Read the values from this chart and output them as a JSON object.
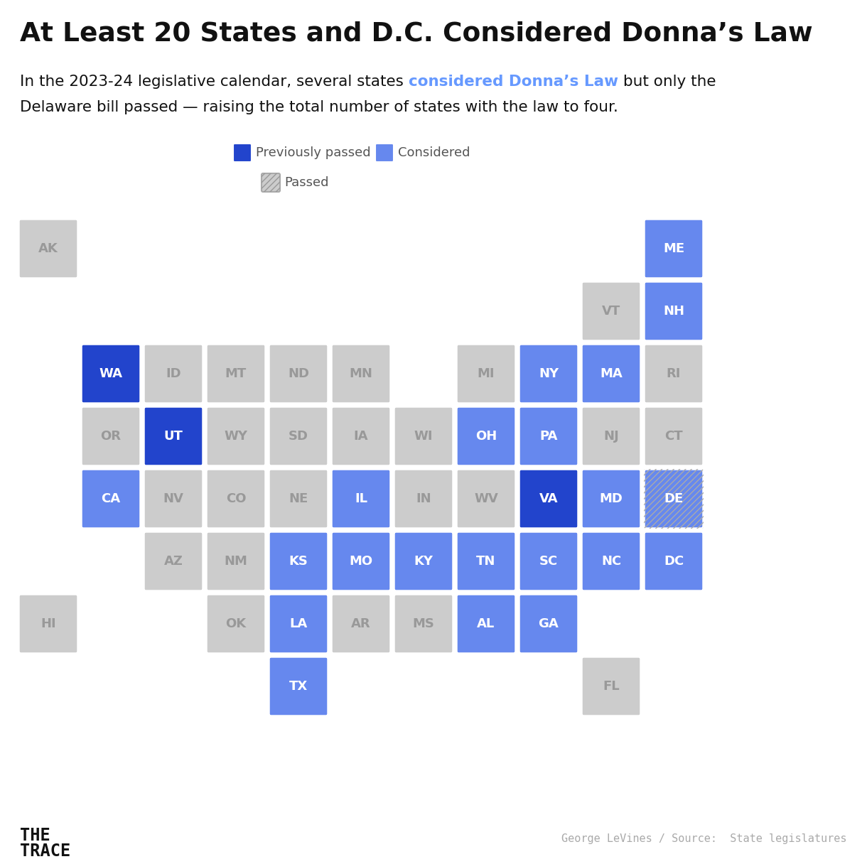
{
  "title": "At Least 20 States and D.C. Considered Donna’s Law",
  "subtitle_line1_pre": "In the 2023-24 legislative calendar, several states ",
  "subtitle_line1_link": "considered Donna’s Law",
  "subtitle_line1_post": " but only the",
  "subtitle_line2": "Delaware bill passed — raising the total number of states with the law to four.",
  "legend_previously_label": "Previously passed",
  "legend_considered_label": "Considered",
  "legend_passed_label": "Passed",
  "footer_logo": "THE\nTRACE",
  "footer_credit": "George LeVines / Source:  State legislatures",
  "colors": {
    "previously_passed": "#2244cc",
    "considered": "#6688ee",
    "passed_base": "#aabbdd",
    "none": "#cccccc",
    "white": "#ffffff",
    "link": "#6699ff",
    "text_dark": "#111111",
    "text_gray": "#999999",
    "text_label": "#555555"
  },
  "states": [
    {
      "abbr": "AK",
      "col": 0,
      "row": 0,
      "status": "none"
    },
    {
      "abbr": "ME",
      "col": 10,
      "row": 0,
      "status": "considered"
    },
    {
      "abbr": "VT",
      "col": 9,
      "row": 1,
      "status": "none"
    },
    {
      "abbr": "NH",
      "col": 10,
      "row": 1,
      "status": "considered"
    },
    {
      "abbr": "WA",
      "col": 1,
      "row": 2,
      "status": "previously_passed"
    },
    {
      "abbr": "ID",
      "col": 2,
      "row": 2,
      "status": "none"
    },
    {
      "abbr": "MT",
      "col": 3,
      "row": 2,
      "status": "none"
    },
    {
      "abbr": "ND",
      "col": 4,
      "row": 2,
      "status": "none"
    },
    {
      "abbr": "MN",
      "col": 5,
      "row": 2,
      "status": "none"
    },
    {
      "abbr": "MI",
      "col": 7,
      "row": 2,
      "status": "none"
    },
    {
      "abbr": "NY",
      "col": 8,
      "row": 2,
      "status": "considered"
    },
    {
      "abbr": "MA",
      "col": 9,
      "row": 2,
      "status": "considered"
    },
    {
      "abbr": "RI",
      "col": 10,
      "row": 2,
      "status": "none"
    },
    {
      "abbr": "OR",
      "col": 1,
      "row": 3,
      "status": "none"
    },
    {
      "abbr": "UT",
      "col": 2,
      "row": 3,
      "status": "previously_passed"
    },
    {
      "abbr": "WY",
      "col": 3,
      "row": 3,
      "status": "none"
    },
    {
      "abbr": "SD",
      "col": 4,
      "row": 3,
      "status": "none"
    },
    {
      "abbr": "IA",
      "col": 5,
      "row": 3,
      "status": "none"
    },
    {
      "abbr": "WI",
      "col": 6,
      "row": 3,
      "status": "none"
    },
    {
      "abbr": "OH",
      "col": 7,
      "row": 3,
      "status": "considered"
    },
    {
      "abbr": "PA",
      "col": 8,
      "row": 3,
      "status": "considered"
    },
    {
      "abbr": "NJ",
      "col": 9,
      "row": 3,
      "status": "none"
    },
    {
      "abbr": "CT",
      "col": 10,
      "row": 3,
      "status": "none"
    },
    {
      "abbr": "CA",
      "col": 1,
      "row": 4,
      "status": "considered"
    },
    {
      "abbr": "NV",
      "col": 2,
      "row": 4,
      "status": "none"
    },
    {
      "abbr": "CO",
      "col": 3,
      "row": 4,
      "status": "none"
    },
    {
      "abbr": "NE",
      "col": 4,
      "row": 4,
      "status": "none"
    },
    {
      "abbr": "IL",
      "col": 5,
      "row": 4,
      "status": "considered"
    },
    {
      "abbr": "IN",
      "col": 6,
      "row": 4,
      "status": "none"
    },
    {
      "abbr": "WV",
      "col": 7,
      "row": 4,
      "status": "none"
    },
    {
      "abbr": "VA",
      "col": 8,
      "row": 4,
      "status": "previously_passed"
    },
    {
      "abbr": "MD",
      "col": 9,
      "row": 4,
      "status": "considered"
    },
    {
      "abbr": "DE",
      "col": 10,
      "row": 4,
      "status": "passed"
    },
    {
      "abbr": "AZ",
      "col": 2,
      "row": 5,
      "status": "none"
    },
    {
      "abbr": "NM",
      "col": 3,
      "row": 5,
      "status": "none"
    },
    {
      "abbr": "KS",
      "col": 4,
      "row": 5,
      "status": "considered"
    },
    {
      "abbr": "MO",
      "col": 5,
      "row": 5,
      "status": "considered"
    },
    {
      "abbr": "KY",
      "col": 6,
      "row": 5,
      "status": "considered"
    },
    {
      "abbr": "TN",
      "col": 7,
      "row": 5,
      "status": "considered"
    },
    {
      "abbr": "SC",
      "col": 8,
      "row": 5,
      "status": "considered"
    },
    {
      "abbr": "NC",
      "col": 9,
      "row": 5,
      "status": "considered"
    },
    {
      "abbr": "DC",
      "col": 10,
      "row": 5,
      "status": "considered"
    },
    {
      "abbr": "HI",
      "col": 0,
      "row": 6,
      "status": "none"
    },
    {
      "abbr": "OK",
      "col": 3,
      "row": 6,
      "status": "none"
    },
    {
      "abbr": "LA",
      "col": 4,
      "row": 6,
      "status": "considered"
    },
    {
      "abbr": "AR",
      "col": 5,
      "row": 6,
      "status": "none"
    },
    {
      "abbr": "MS",
      "col": 6,
      "row": 6,
      "status": "none"
    },
    {
      "abbr": "AL",
      "col": 7,
      "row": 6,
      "status": "considered"
    },
    {
      "abbr": "GA",
      "col": 8,
      "row": 6,
      "status": "considered"
    },
    {
      "abbr": "TX",
      "col": 4,
      "row": 7,
      "status": "considered"
    },
    {
      "abbr": "FL",
      "col": 9,
      "row": 7,
      "status": "none"
    }
  ]
}
